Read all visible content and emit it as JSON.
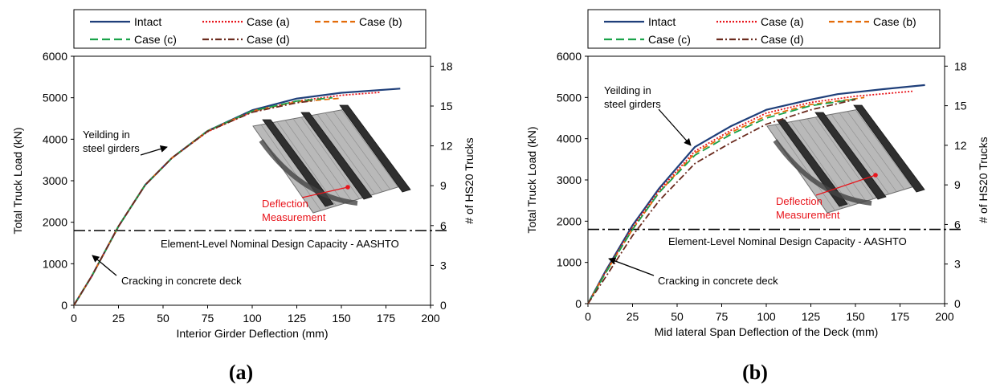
{
  "panels": [
    {
      "label": "(a)",
      "chart_data": {
        "type": "line",
        "xlabel": "Interior Girder Deflection (mm)",
        "ylabel": "Total Truck Load (kN)",
        "y2label": "# of HS20 Trucks",
        "xlim": [
          0,
          200
        ],
        "ylim": [
          0,
          6000
        ],
        "y2lim": [
          0,
          18.75
        ],
        "xticks": [
          0,
          25,
          50,
          75,
          100,
          125,
          150,
          175,
          200
        ],
        "yticks": [
          0,
          1000,
          2000,
          3000,
          4000,
          5000,
          6000
        ],
        "y2ticks": [
          0,
          3,
          6,
          9,
          12,
          15,
          18
        ],
        "grid": false,
        "legend_position": "top",
        "series": [
          {
            "name": "Intact",
            "color": "#1f3f7a",
            "dash": "solid",
            "x": [
              0,
              10,
              25,
              40,
              55,
              75,
              100,
              125,
              150,
              183
            ],
            "y": [
              0,
              700,
              1900,
              2900,
              3550,
              4200,
              4700,
              4980,
              5120,
              5220
            ]
          },
          {
            "name": "Case (a)",
            "color": "#e8141b",
            "dash": "dot",
            "x": [
              0,
              10,
              25,
              40,
              55,
              75,
              100,
              125,
              150,
              172
            ],
            "y": [
              0,
              700,
              1900,
              2900,
              3550,
              4180,
              4660,
              4920,
              5060,
              5130
            ]
          },
          {
            "name": "Case (b)",
            "color": "#e36c09",
            "dash": "dash",
            "x": [
              0,
              10,
              25,
              40,
              55,
              75,
              100,
              125,
              150
            ],
            "y": [
              0,
              700,
              1900,
              2900,
              3550,
              4200,
              4680,
              4900,
              4990
            ]
          },
          {
            "name": "Case (c)",
            "color": "#1aa34a",
            "dash": "longdash",
            "x": [
              0,
              10,
              25,
              40,
              55,
              75,
              100,
              125,
              145
            ],
            "y": [
              0,
              700,
              1900,
              2900,
              3550,
              4200,
              4680,
              4920,
              5000
            ]
          },
          {
            "name": "Case (d)",
            "color": "#6b2b1e",
            "dash": "dashdot",
            "x": [
              0,
              10,
              25,
              40,
              55,
              75,
              100,
              125,
              135
            ],
            "y": [
              0,
              700,
              1900,
              2900,
              3550,
              4190,
              4650,
              4880,
              4930
            ]
          }
        ],
        "reference_line": {
          "y": 1800,
          "label": "Element-Level Nominal Design Capacity - AASHTO"
        },
        "annotations": [
          {
            "text_lines": [
              "Yeilding in",
              "steel girders"
            ]
          },
          {
            "text_lines": [
              "Cracking in concrete deck"
            ]
          },
          {
            "text_lines": [
              "Deflection",
              "Measurement"
            ],
            "color": "#e8141b"
          }
        ]
      }
    },
    {
      "label": "(b)",
      "chart_data": {
        "type": "line",
        "xlabel": "Mid lateral Span Deflection of the Deck (mm)",
        "ylabel": "Total Truck Load (kN)",
        "y2label": "# of HS20 Trucks",
        "xlim": [
          0,
          200
        ],
        "ylim": [
          0,
          6000
        ],
        "y2lim": [
          0,
          18.75
        ],
        "xticks": [
          0,
          25,
          50,
          75,
          100,
          125,
          150,
          175,
          200
        ],
        "yticks": [
          0,
          1000,
          2000,
          3000,
          4000,
          5000,
          6000
        ],
        "y2ticks": [
          0,
          3,
          6,
          9,
          12,
          15,
          18
        ],
        "grid": false,
        "legend_position": "top",
        "series": [
          {
            "name": "Intact",
            "color": "#1f3f7a",
            "dash": "solid",
            "x": [
              0,
              10,
              25,
              40,
              60,
              80,
              100,
              125,
              140,
              165,
              189
            ],
            "y": [
              0,
              800,
              1900,
              2800,
              3800,
              4300,
              4700,
              4950,
              5080,
              5200,
              5300
            ]
          },
          {
            "name": "Case (a)",
            "color": "#e8141b",
            "dash": "dot",
            "x": [
              0,
              10,
              25,
              40,
              60,
              80,
              100,
              125,
              150,
              182
            ],
            "y": [
              0,
              780,
              1850,
              2750,
              3700,
              4200,
              4620,
              4880,
              5030,
              5150
            ]
          },
          {
            "name": "Case (b)",
            "color": "#e36c09",
            "dash": "dash",
            "x": [
              0,
              10,
              25,
              40,
              60,
              80,
              100,
              125,
              150,
              155
            ],
            "y": [
              0,
              760,
              1800,
              2700,
              3650,
              4150,
              4550,
              4830,
              4970,
              5000
            ]
          },
          {
            "name": "Case (c)",
            "color": "#1aa34a",
            "dash": "longdash",
            "x": [
              0,
              10,
              25,
              40,
              60,
              80,
              100,
              125,
              150
            ],
            "y": [
              0,
              750,
              1800,
              2700,
              3600,
              4100,
              4500,
              4800,
              4960
            ]
          },
          {
            "name": "Case (d)",
            "color": "#6b2b1e",
            "dash": "dashdot",
            "x": [
              0,
              10,
              25,
              40,
              60,
              80,
              100,
              125,
              150
            ],
            "y": [
              0,
              650,
              1650,
              2500,
              3400,
              3900,
              4350,
              4700,
              4950
            ]
          }
        ],
        "reference_line": {
          "y": 1800,
          "label": "Element-Level Nominal Design Capacity - AASHTO"
        },
        "annotations": [
          {
            "text_lines": [
              "Yeilding in",
              "steel girders"
            ]
          },
          {
            "text_lines": [
              "Cracking in concrete deck"
            ]
          },
          {
            "text_lines": [
              "Deflection",
              "Measurement"
            ],
            "color": "#e8141b"
          }
        ]
      }
    }
  ]
}
